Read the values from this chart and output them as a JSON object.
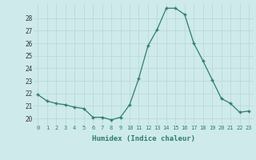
{
  "x": [
    0,
    1,
    2,
    3,
    4,
    5,
    6,
    7,
    8,
    9,
    10,
    11,
    12,
    13,
    14,
    15,
    16,
    17,
    18,
    19,
    20,
    21,
    22,
    23
  ],
  "y": [
    21.9,
    21.4,
    21.2,
    21.1,
    20.9,
    20.8,
    20.1,
    20.1,
    19.9,
    20.1,
    21.1,
    23.2,
    25.8,
    27.1,
    28.8,
    28.8,
    28.3,
    26.0,
    24.6,
    23.1,
    21.6,
    21.2,
    20.5,
    20.6
  ],
  "xlabel": "Humidex (Indice chaleur)",
  "ylim": [
    19.5,
    29.2
  ],
  "xlim": [
    -0.5,
    23.5
  ],
  "yticks": [
    20,
    21,
    22,
    23,
    24,
    25,
    26,
    27,
    28
  ],
  "xticks": [
    0,
    1,
    2,
    3,
    4,
    5,
    6,
    7,
    8,
    9,
    10,
    11,
    12,
    13,
    14,
    15,
    16,
    17,
    18,
    19,
    20,
    21,
    22,
    23
  ],
  "line_color": "#2d7d6e",
  "bg_color": "#ceeaea",
  "grid_color": "#b8d8d4"
}
